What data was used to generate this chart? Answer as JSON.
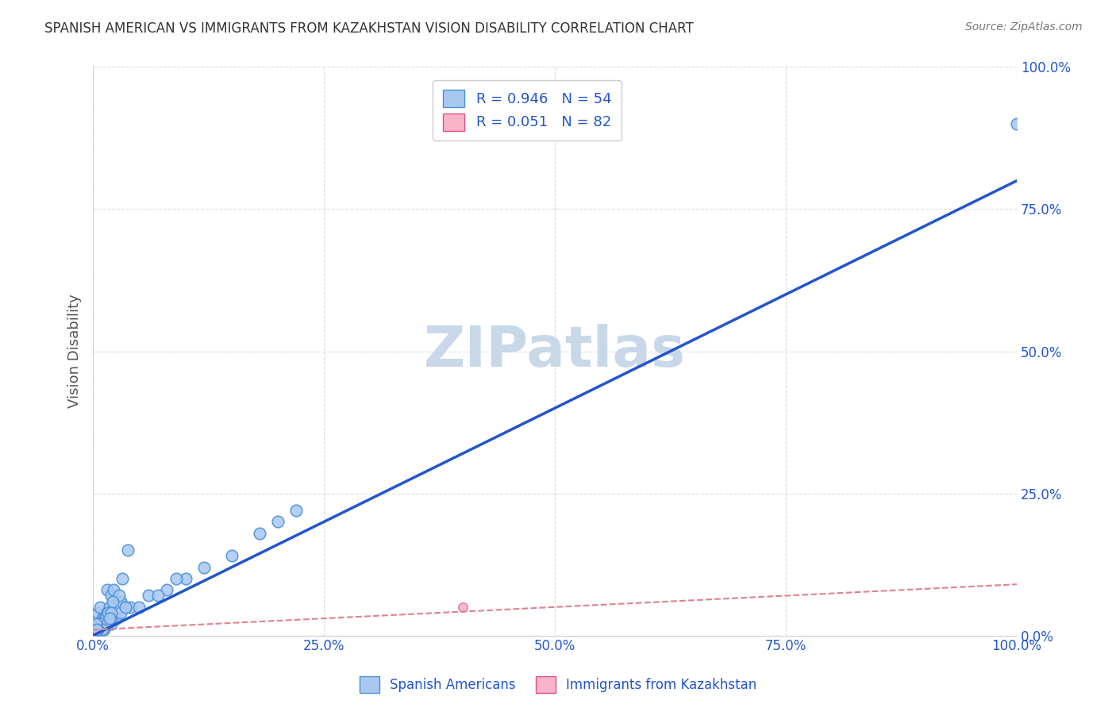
{
  "title": "SPANISH AMERICAN VS IMMIGRANTS FROM KAZAKHSTAN VISION DISABILITY CORRELATION CHART",
  "source": "Source: ZipAtlas.com",
  "ylabel": "Vision Disability",
  "xlim": [
    0,
    100
  ],
  "ylim": [
    0,
    100
  ],
  "xtick_labels": [
    "0.0%",
    "25.0%",
    "50.0%",
    "75.0%",
    "100.0%"
  ],
  "ytick_labels": [
    "0.0%",
    "25.0%",
    "50.0%",
    "75.0%",
    "100.0%"
  ],
  "blue_R": 0.946,
  "blue_N": 54,
  "pink_R": 0.051,
  "pink_N": 82,
  "blue_color": "#a8c8f0",
  "blue_edge_color": "#4a90d9",
  "pink_color": "#f8b4c8",
  "pink_edge_color": "#e05080",
  "blue_line_color": "#2255cc",
  "pink_line_color": "#e08090",
  "watermark_color": "#c8d8e8",
  "title_color": "#333333",
  "source_color": "#777777",
  "axis_label_color": "#2255cc",
  "legend_text_color": "#2255cc",
  "grid_color": "#dddddd",
  "blue_scatter_x": [
    1.0,
    2.0,
    1.5,
    0.5,
    0.8,
    1.2,
    3.0,
    2.0,
    1.0,
    0.3,
    0.5,
    1.5,
    2.5,
    3.5,
    2.0,
    1.5,
    0.8,
    1.2,
    2.2,
    3.2,
    0.6,
    1.8,
    2.8,
    1.0,
    1.4,
    0.7,
    2.1,
    0.9,
    1.6,
    3.8,
    10.0,
    12.0,
    15.0,
    18.0,
    20.0,
    22.0,
    100.0,
    8.0,
    6.0,
    4.0,
    5.0,
    7.0,
    9.0,
    2.5,
    3.0,
    1.5,
    2.0,
    1.0,
    0.5,
    0.3,
    2.0,
    1.8,
    0.4,
    3.5
  ],
  "blue_scatter_y": [
    2.0,
    3.0,
    8.0,
    4.0,
    5.0,
    1.0,
    6.0,
    2.0,
    3.0,
    1.0,
    2.0,
    4.0,
    3.0,
    5.0,
    7.0,
    2.0,
    1.0,
    3.0,
    8.0,
    10.0,
    2.0,
    5.0,
    7.0,
    1.0,
    3.0,
    2.0,
    6.0,
    2.0,
    4.0,
    15.0,
    10.0,
    12.0,
    14.0,
    18.0,
    20.0,
    22.0,
    90.0,
    8.0,
    7.0,
    5.0,
    5.0,
    7.0,
    10.0,
    3.0,
    4.0,
    2.0,
    3.0,
    1.0,
    1.0,
    2.0,
    4.0,
    3.0,
    1.0,
    5.0
  ],
  "pink_scatter_x": [
    0.1,
    0.2,
    0.15,
    0.3,
    0.1,
    0.05,
    0.2,
    0.1,
    0.3,
    0.15,
    0.2,
    0.25,
    0.1,
    0.05,
    0.1,
    0.2,
    0.3,
    0.15,
    0.1,
    0.2,
    0.05,
    0.1,
    0.25,
    0.3,
    0.15,
    0.1,
    0.2,
    0.05,
    0.3,
    0.1,
    0.15,
    0.2,
    0.1,
    0.25,
    40.0,
    0.1,
    0.2,
    0.15,
    0.3,
    0.05,
    0.1,
    0.2,
    0.15,
    0.1,
    0.3,
    0.2,
    0.1,
    0.15,
    0.05,
    0.2,
    0.1,
    0.25,
    0.3,
    0.15,
    0.1,
    0.2,
    0.1,
    0.15,
    0.05,
    0.2,
    0.1,
    0.25,
    0.3,
    0.15,
    0.1,
    0.2,
    0.05,
    0.1,
    0.25,
    0.15,
    0.2,
    0.1,
    0.15,
    0.25,
    0.1,
    0.2,
    0.15,
    0.3,
    0.1,
    0.05,
    0.2,
    0.3
  ],
  "pink_scatter_y": [
    1.0,
    2.0,
    1.0,
    2.0,
    1.0,
    0.5,
    1.5,
    1.0,
    2.0,
    1.0,
    1.5,
    1.0,
    0.5,
    1.0,
    2.0,
    1.0,
    1.5,
    1.0,
    0.5,
    1.0,
    1.0,
    2.0,
    1.0,
    1.5,
    0.5,
    1.0,
    1.5,
    1.0,
    2.0,
    0.5,
    1.0,
    1.5,
    1.0,
    2.0,
    5.0,
    1.0,
    0.5,
    1.0,
    1.5,
    1.0,
    2.0,
    1.0,
    0.5,
    1.5,
    1.0,
    1.0,
    0.5,
    1.0,
    1.5,
    2.0,
    1.0,
    0.5,
    1.5,
    1.0,
    2.0,
    1.0,
    1.5,
    1.0,
    0.5,
    1.0,
    2.0,
    1.0,
    1.5,
    0.5,
    1.0,
    1.5,
    1.0,
    2.0,
    0.5,
    1.0,
    1.5,
    1.0,
    2.0,
    1.0,
    0.5,
    1.5,
    1.0,
    1.0,
    0.5,
    1.0,
    1.5,
    2.0
  ]
}
